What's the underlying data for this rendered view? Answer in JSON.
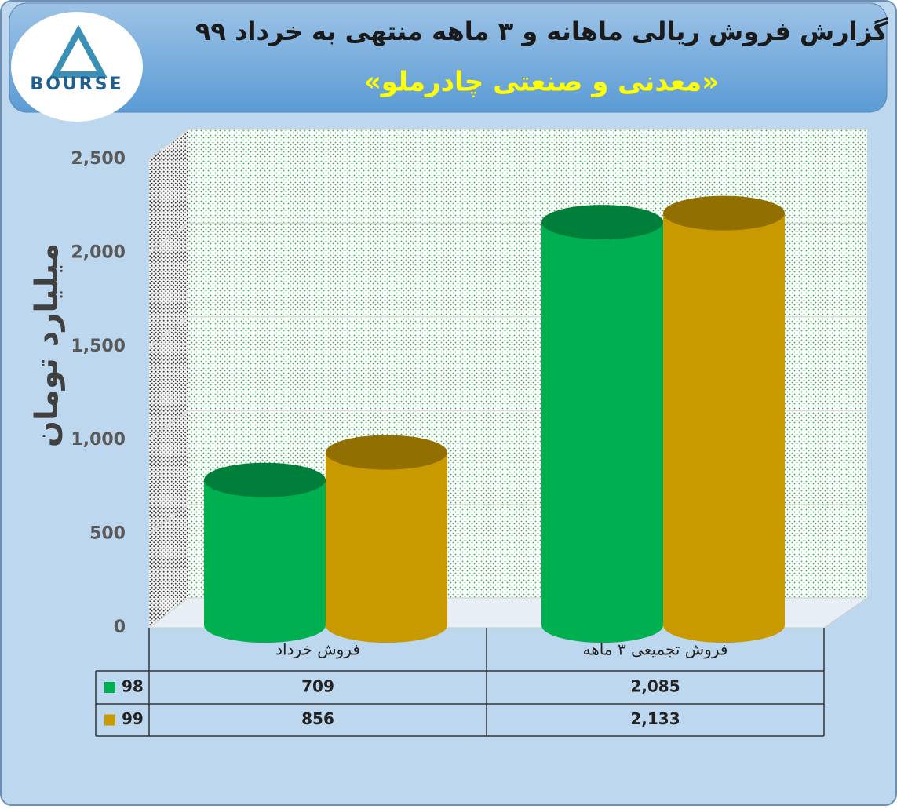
{
  "logo": {
    "text": "BOURSE"
  },
  "chart_data": {
    "type": "bar3d",
    "title": "گزارش فروش ریالی ماهانه و ۳ ماهه منتهی به خرداد ۹۹",
    "subtitle": "«معدنی و صنعتی چادرملو»",
    "y_label": "میلیارد تومان",
    "categories": [
      "فروش خرداد",
      "فروش تجمیعی ۳ ماهه"
    ],
    "series": [
      {
        "name": "98",
        "color": "#00b050",
        "values": [
          709,
          2085
        ],
        "value_labels": [
          "709",
          "2,085"
        ]
      },
      {
        "name": "99",
        "color": "#c99a00",
        "values": [
          856,
          2133
        ],
        "value_labels": [
          "856",
          "2,133"
        ]
      }
    ],
    "ylim": [
      0,
      2500
    ],
    "yticks": [
      0,
      500,
      {
        "value": 1000,
        "label": "1,000"
      },
      {
        "value": 1500,
        "label": "1,500"
      },
      {
        "value": 2000,
        "label": "2,000"
      },
      {
        "value": 2500,
        "label": "2,500"
      }
    ],
    "grid": true
  }
}
